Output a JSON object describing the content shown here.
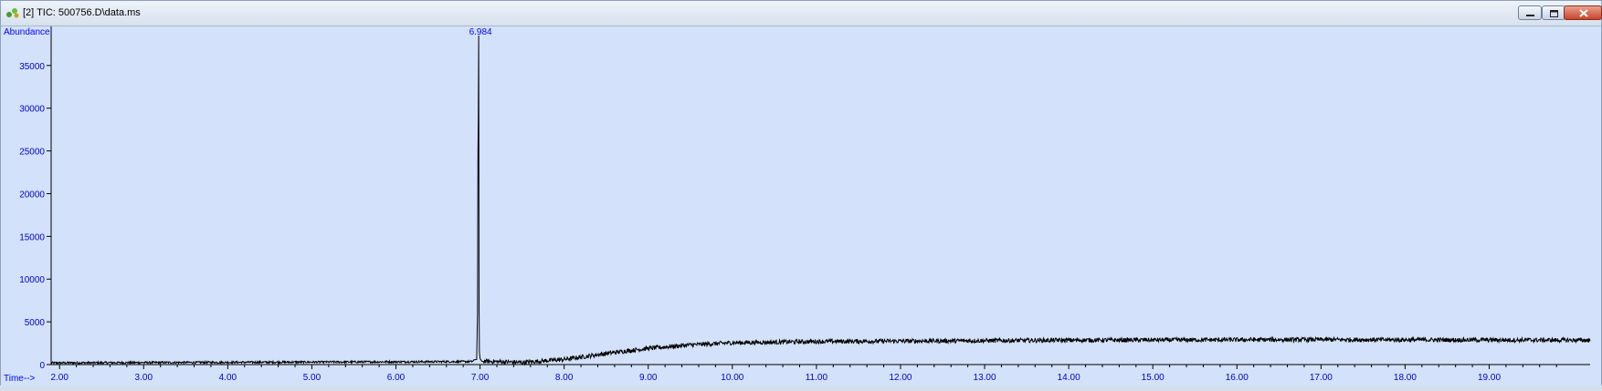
{
  "window": {
    "title": "[2] TIC: 500756.D\\data.ms",
    "app_icon": "chromatogram-app-icon",
    "controls": [
      "minimize-icon",
      "restore-icon",
      "close-icon"
    ]
  },
  "colors": {
    "plot_bg": "#d3e2fa",
    "trace": "#000000",
    "axis_text": "#0000cc",
    "label_text": "#0000ff"
  },
  "chart_data": {
    "type": "line",
    "ylabel": "Abundance",
    "xlabel": "Time-->",
    "xlim": [
      1.9,
      20.2
    ],
    "ylim": [
      0,
      38500
    ],
    "y_ticks": [
      "0",
      "5000",
      "10000",
      "15000",
      "20000",
      "25000",
      "30000",
      "35000"
    ],
    "x_ticks": [
      "2.00",
      "3.00",
      "4.00",
      "5.00",
      "6.00",
      "7.00",
      "8.00",
      "9.00",
      "10.00",
      "11.00",
      "12.00",
      "13.00",
      "14.00",
      "15.00",
      "16.00",
      "17.00",
      "18.00",
      "19.00"
    ],
    "peak_label": "6.984",
    "peak": {
      "time": 6.984,
      "abundance": 38500
    },
    "series": [
      {
        "x": [
          1.9,
          6.9,
          6.96,
          6.97,
          6.975,
          6.98,
          6.984,
          6.988,
          6.992,
          7.0,
          7.02,
          7.5,
          8.0,
          8.5,
          9.0,
          9.5,
          10.0,
          11.0,
          12.0,
          13.0,
          14.0,
          15.0,
          16.0,
          17.0,
          18.0,
          19.0,
          20.2
        ],
        "y": [
          200,
          350,
          600,
          6000,
          24500,
          29000,
          38500,
          7000,
          1500,
          700,
          400,
          250,
          600,
          1300,
          1900,
          2300,
          2550,
          2700,
          2750,
          2800,
          2850,
          2880,
          2900,
          2920,
          2900,
          2880,
          2850
        ]
      }
    ]
  }
}
